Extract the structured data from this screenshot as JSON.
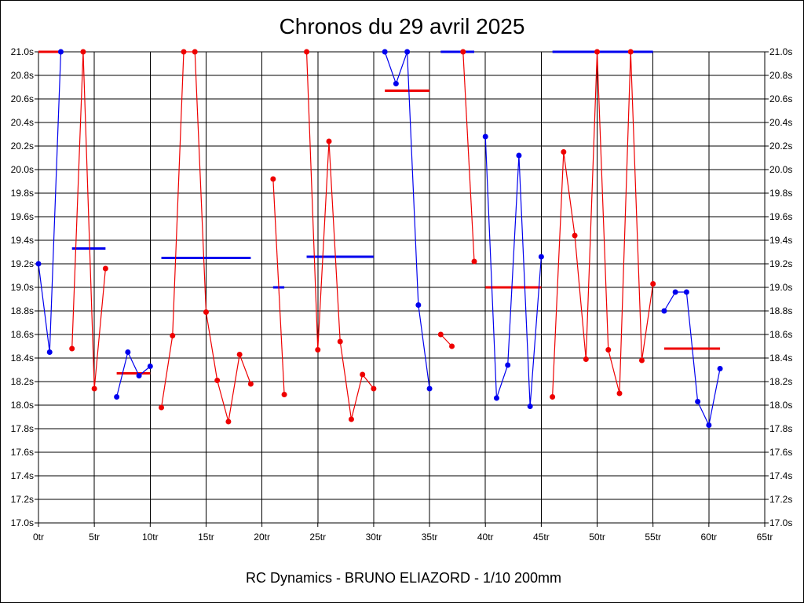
{
  "chart_data": {
    "type": "line",
    "title": "Chronos du 29 avril 2025",
    "footer": "RC Dynamics - BRUNO ELIAZORD - 1/10 200mm",
    "xlabel": "",
    "ylabel": "",
    "xlim": [
      0,
      65
    ],
    "ylim": [
      17.0,
      21.0
    ],
    "grid": true,
    "x_ticks": [
      "0tr",
      "5tr",
      "10tr",
      "15tr",
      "20tr",
      "25tr",
      "30tr",
      "35tr",
      "40tr",
      "45tr",
      "50tr",
      "55tr",
      "60tr",
      "65tr"
    ],
    "y_ticks": [
      "17.0s",
      "17.2s",
      "17.4s",
      "17.6s",
      "17.8s",
      "18.0s",
      "18.2s",
      "18.4s",
      "18.6s",
      "18.8s",
      "19.0s",
      "19.2s",
      "19.4s",
      "19.6s",
      "19.8s",
      "20.0s",
      "20.2s",
      "20.4s",
      "20.6s",
      "20.8s",
      "21.0s"
    ],
    "colors": {
      "blue": "#0000ee",
      "red": "#ee0000"
    },
    "series": [
      {
        "color": "blue",
        "points": [
          [
            0,
            19.2
          ],
          [
            1,
            18.45
          ],
          [
            2,
            21.0
          ]
        ]
      },
      {
        "color": "red",
        "points": [
          [
            0,
            21.0
          ],
          [
            1,
            21.0
          ]
        ],
        "dots": false
      },
      {
        "color": "red",
        "points": [
          [
            3,
            18.48
          ],
          [
            4,
            21.0
          ],
          [
            5,
            18.14
          ],
          [
            6,
            19.16
          ]
        ]
      },
      {
        "color": "blue",
        "points": [
          [
            7,
            18.07
          ],
          [
            8,
            18.45
          ],
          [
            9,
            18.25
          ],
          [
            10,
            18.33
          ]
        ]
      },
      {
        "color": "red",
        "points": [
          [
            11,
            17.98
          ],
          [
            12,
            18.59
          ],
          [
            13,
            21.0
          ],
          [
            14,
            21.0
          ],
          [
            15,
            18.79
          ],
          [
            16,
            18.21
          ],
          [
            17,
            17.86
          ],
          [
            18,
            18.43
          ],
          [
            19,
            18.18
          ]
        ]
      },
      {
        "color": "red",
        "points": [
          [
            21,
            19.92
          ],
          [
            22,
            18.09
          ]
        ]
      },
      {
        "color": "red",
        "points": [
          [
            24,
            21.0
          ],
          [
            25,
            18.47
          ],
          [
            26,
            20.24
          ],
          [
            27,
            18.54
          ],
          [
            28,
            17.88
          ],
          [
            29,
            18.26
          ],
          [
            30,
            18.14
          ]
        ]
      },
      {
        "color": "blue",
        "points": [
          [
            31,
            21.0
          ],
          [
            32,
            20.73
          ],
          [
            33,
            21.0
          ],
          [
            34,
            18.85
          ],
          [
            35,
            18.14
          ]
        ]
      },
      {
        "color": "red",
        "points": [
          [
            36,
            18.6
          ],
          [
            37,
            18.5
          ]
        ]
      },
      {
        "color": "red",
        "points": [
          [
            38,
            21.0
          ],
          [
            39,
            19.22
          ]
        ]
      },
      {
        "color": "blue",
        "points": [
          [
            40,
            20.28
          ],
          [
            41,
            18.06
          ],
          [
            42,
            18.34
          ],
          [
            43,
            20.12
          ],
          [
            44,
            17.99
          ],
          [
            45,
            19.26
          ]
        ]
      },
      {
        "color": "red",
        "points": [
          [
            46,
            18.07
          ],
          [
            47,
            20.15
          ],
          [
            48,
            19.44
          ],
          [
            49,
            18.39
          ],
          [
            50,
            21.0
          ],
          [
            51,
            18.47
          ],
          [
            52,
            18.1
          ],
          [
            53,
            21.0
          ],
          [
            54,
            18.38
          ],
          [
            55,
            19.03
          ]
        ]
      },
      {
        "color": "blue",
        "points": [
          [
            56,
            18.8
          ],
          [
            57,
            18.96
          ],
          [
            58,
            18.96
          ],
          [
            59,
            18.03
          ],
          [
            60,
            17.83
          ],
          [
            61,
            18.31
          ]
        ]
      }
    ],
    "averages": [
      {
        "color": "red",
        "x": [
          0,
          2
        ],
        "y": 21.0
      },
      {
        "color": "blue",
        "x": [
          3,
          6
        ],
        "y": 19.33
      },
      {
        "color": "red",
        "x": [
          7,
          10
        ],
        "y": 18.27
      },
      {
        "color": "blue",
        "x": [
          11,
          19
        ],
        "y": 19.25
      },
      {
        "color": "blue",
        "x": [
          21,
          22
        ],
        "y": 19.0
      },
      {
        "color": "blue",
        "x": [
          24,
          30
        ],
        "y": 19.26
      },
      {
        "color": "red",
        "x": [
          31,
          35
        ],
        "y": 20.67
      },
      {
        "color": "blue",
        "x": [
          36,
          39
        ],
        "y": 21.0
      },
      {
        "color": "red",
        "x": [
          40,
          45
        ],
        "y": 19.0
      },
      {
        "color": "blue",
        "x": [
          46,
          55
        ],
        "y": 21.0
      },
      {
        "color": "red",
        "x": [
          56,
          61
        ],
        "y": 18.48
      }
    ]
  }
}
